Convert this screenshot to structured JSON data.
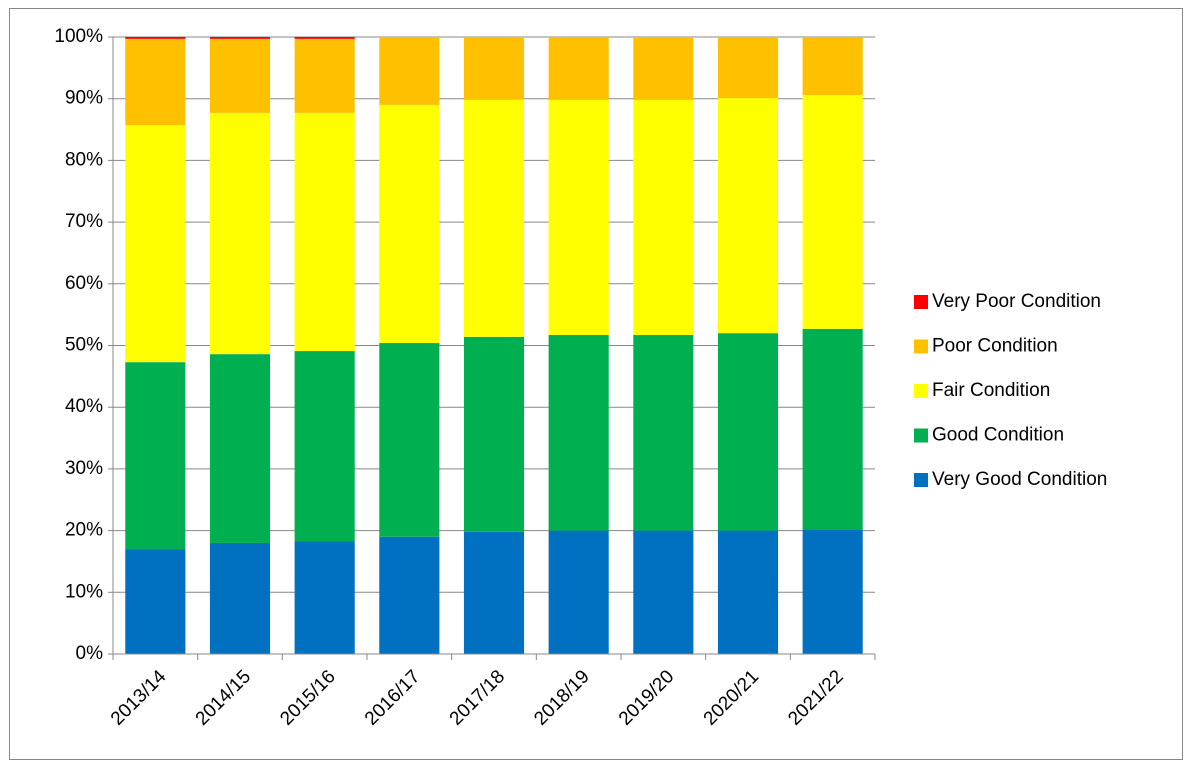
{
  "chart_data": {
    "type": "stacked_bar",
    "categories": [
      "2013/14",
      "2014/15",
      "2015/16",
      "2016/17",
      "2017/18",
      "2018/19",
      "2019/20",
      "2020/21",
      "2021/22"
    ],
    "series": [
      {
        "name": "Very Good Condition",
        "color": "#0070c0",
        "values": [
          17,
          18,
          18.3,
          19,
          19.8,
          20,
          20,
          20,
          20.2
        ]
      },
      {
        "name": "Good Condition",
        "color": "#00b050",
        "values": [
          30.3,
          30.6,
          30.8,
          31.4,
          31.6,
          31.7,
          31.7,
          32,
          32.5
        ]
      },
      {
        "name": "Fair Condition",
        "color": "#ffff00",
        "values": [
          38.4,
          39.1,
          38.6,
          38.6,
          38.4,
          38.1,
          38.1,
          38.1,
          37.9
        ]
      },
      {
        "name": "Poor Condition",
        "color": "#ffc000",
        "values": [
          14,
          12,
          12,
          11,
          10.2,
          10.2,
          10.2,
          9.9,
          9.4
        ]
      },
      {
        "name": "Very Poor Condition",
        "color": "#ff0000",
        "values": [
          0.3,
          0.3,
          0.3,
          0,
          0,
          0,
          0,
          0,
          0
        ]
      }
    ],
    "ylim": [
      0,
      100
    ],
    "yticks": [
      {
        "value": 0,
        "label": "0%"
      },
      {
        "value": 10,
        "label": "10%"
      },
      {
        "value": 20,
        "label": "20%"
      },
      {
        "value": 30,
        "label": "30%"
      },
      {
        "value": 40,
        "label": "40%"
      },
      {
        "value": 50,
        "label": "50%"
      },
      {
        "value": 60,
        "label": "60%"
      },
      {
        "value": 70,
        "label": "70%"
      },
      {
        "value": 80,
        "label": "80%"
      },
      {
        "value": 90,
        "label": "90%"
      },
      {
        "value": 100,
        "label": "100%"
      }
    ],
    "grid": true,
    "legend": "right"
  }
}
